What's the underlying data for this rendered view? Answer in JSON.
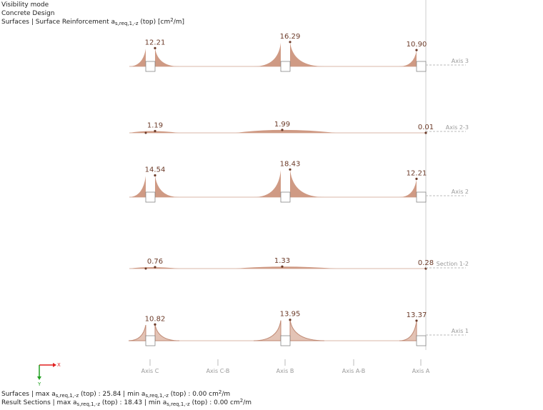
{
  "header": {
    "lines": [
      "Visibility mode",
      "Concrete Design"
    ],
    "title": {
      "text": "Surfaces | Surface Reinforcement a",
      "subscript": "s,req,1,-z",
      "rest": " (top) [cm",
      "superscript": "2",
      "end": "/m]"
    }
  },
  "rows": [
    {
      "label": "Axis 3",
      "peaks": [
        "12.21",
        "16.29",
        "10.90"
      ]
    },
    {
      "label": "Axis  2-3",
      "peaks": [
        "1.19",
        "1.99",
        "0.01"
      ]
    },
    {
      "label": "Axis 2",
      "peaks": [
        "14.54",
        "18.43",
        "12.21"
      ]
    },
    {
      "label": "Section 1-2",
      "peaks": [
        "0.76",
        "1.33",
        "0.28"
      ]
    },
    {
      "label": "Axis 1",
      "peaks": [
        "10.82",
        "13.95",
        "13.37"
      ]
    }
  ],
  "axes": [
    "Axis C",
    "Axis C-B",
    "Axis B",
    "Axis A-B",
    "Axis A"
  ],
  "coordinate_system": {
    "x": "X",
    "y": "Y"
  },
  "footer": [
    {
      "text": "Surfaces | max a",
      "sub1": "s,req,1,-z",
      "mid": " (top) : 25.84 | min a",
      "sub2": "s,req,1,-z",
      "rest": " (top) : 0.00 cm",
      "sup": "2",
      "end": "/m"
    },
    {
      "text": "Result Sections | max a",
      "sub1": "s,req,1,-z",
      "mid": " (top) : 18.43 | min a",
      "sub2": "s,req,1,-z",
      "rest": " (top) : 0.00 cm",
      "sup": "2",
      "end": "/m"
    }
  ]
}
